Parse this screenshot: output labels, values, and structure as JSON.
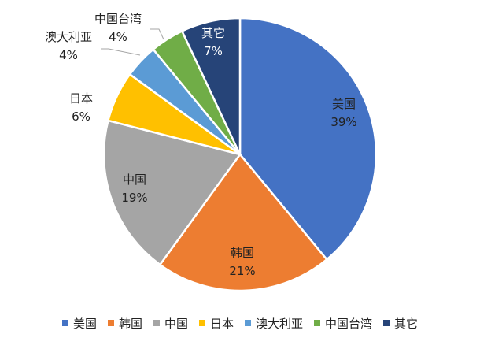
{
  "chart_data": {
    "type": "pie",
    "categories": [
      "美国",
      "韩国",
      "中国",
      "日本",
      "澳大利亚",
      "中国台湾",
      "其它"
    ],
    "values": [
      39,
      21,
      19,
      6,
      4,
      4,
      7
    ],
    "value_labels": [
      "39%",
      "21%",
      "19%",
      "6%",
      "4%",
      "4%",
      "7%"
    ],
    "colors": [
      "#4472c4",
      "#ed7d31",
      "#a5a5a5",
      "#ffc000",
      "#5b9bd5",
      "#70ad47",
      "#264478"
    ],
    "start_angle": "12 o'clock",
    "direction": "clockwise",
    "legend_position": "bottom"
  }
}
